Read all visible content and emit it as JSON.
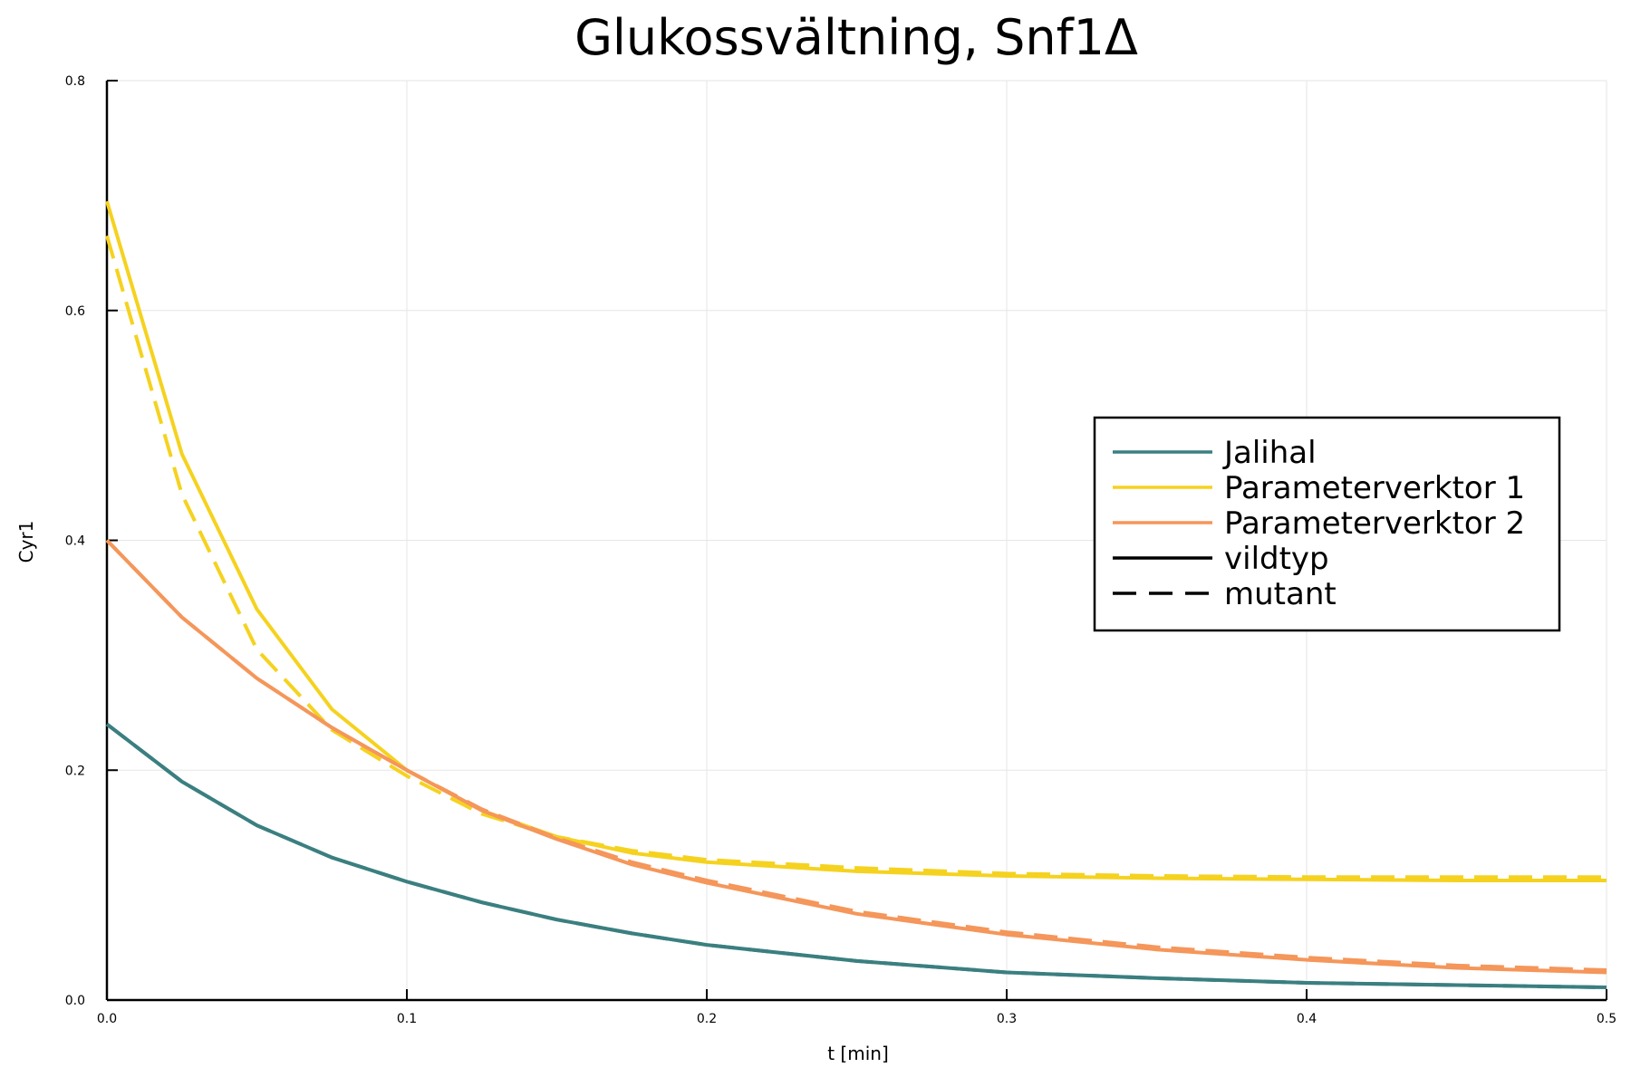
{
  "chart_data": {
    "type": "line",
    "title": "Glukossvältning, Snf1Δ",
    "xlabel": "t [min]",
    "ylabel": "Cyr1",
    "xlim": [
      0,
      0.5
    ],
    "ylim": [
      0,
      0.8
    ],
    "xticks": [
      0.0,
      0.1,
      0.2,
      0.3,
      0.4,
      0.5
    ],
    "xtick_labels": [
      "0.0",
      "0.1",
      "0.2",
      "0.3",
      "0.4",
      "0.5"
    ],
    "yticks": [
      0.0,
      0.2,
      0.4,
      0.6,
      0.8
    ],
    "ytick_labels": [
      "0.0",
      "0.2",
      "0.4",
      "0.6",
      "0.8"
    ],
    "grid": true,
    "legend_position": "right",
    "x": [
      0.0,
      0.025,
      0.05,
      0.075,
      0.1,
      0.125,
      0.15,
      0.175,
      0.2,
      0.25,
      0.3,
      0.35,
      0.4,
      0.45,
      0.5
    ],
    "series": [
      {
        "name": "Jalihal",
        "color": "#3b7f80",
        "style": "solid",
        "values": [
          0.24,
          0.19,
          0.152,
          0.124,
          0.103,
          0.085,
          0.07,
          0.058,
          0.048,
          0.034,
          0.024,
          0.019,
          0.015,
          0.013,
          0.011
        ]
      },
      {
        "color": "#3b7f80",
        "style": "dashed",
        "values": [
          0.24,
          0.19,
          0.152,
          0.124,
          0.103,
          0.085,
          0.07,
          0.058,
          0.048,
          0.034,
          0.024,
          0.019,
          0.015,
          0.013,
          0.011
        ]
      },
      {
        "name": "Parameterverktor 1",
        "color": "#f5d21f",
        "style": "solid",
        "values": [
          0.695,
          0.475,
          0.34,
          0.253,
          0.2,
          0.165,
          0.142,
          0.128,
          0.12,
          0.112,
          0.108,
          0.106,
          0.105,
          0.104,
          0.104
        ]
      },
      {
        "color": "#f5d21f",
        "style": "dashed",
        "values": [
          0.665,
          0.44,
          0.305,
          0.235,
          0.195,
          0.162,
          0.142,
          0.13,
          0.122,
          0.115,
          0.11,
          0.108,
          0.107,
          0.107,
          0.107
        ]
      },
      {
        "name": "Parameterverktor 2",
        "color": "#f5965a",
        "style": "solid",
        "values": [
          0.4,
          0.333,
          0.28,
          0.237,
          0.2,
          0.165,
          0.14,
          0.118,
          0.102,
          0.075,
          0.057,
          0.044,
          0.035,
          0.028,
          0.024
        ]
      },
      {
        "color": "#f5965a",
        "style": "dashed",
        "values": [
          0.4,
          0.333,
          0.28,
          0.237,
          0.2,
          0.166,
          0.141,
          0.12,
          0.104,
          0.077,
          0.059,
          0.046,
          0.037,
          0.03,
          0.026
        ]
      }
    ],
    "legend": [
      {
        "label": "Jalihal",
        "color": "#3b7f80",
        "style": "solid"
      },
      {
        "label": "Parameterverktor 1",
        "color": "#f5d21f",
        "style": "solid"
      },
      {
        "label": "Parameterverktor 2",
        "color": "#f5965a",
        "style": "solid"
      },
      {
        "label": "vildtyp",
        "color": "#000000",
        "style": "solid"
      },
      {
        "label": "mutant",
        "color": "#000000",
        "style": "dashed"
      }
    ]
  }
}
